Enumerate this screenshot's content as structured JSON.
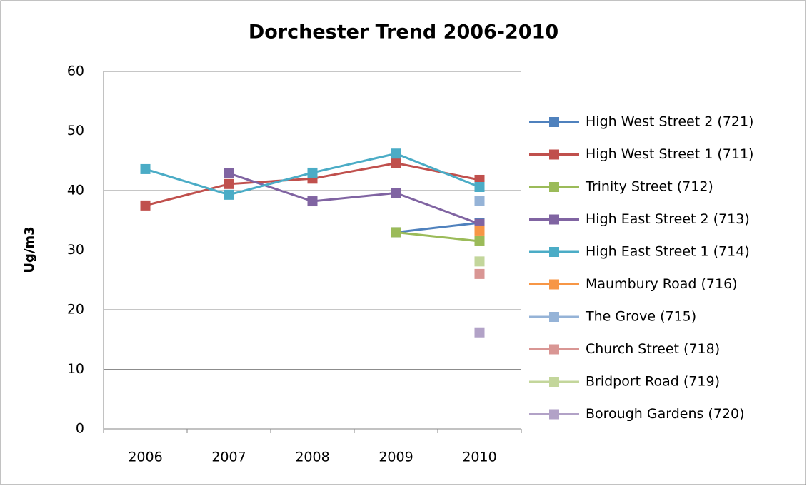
{
  "chart_data": {
    "type": "line",
    "title": "Dorchester Trend 2006-2010",
    "y_label": "Ug/m3",
    "categories": [
      "2006",
      "2007",
      "2008",
      "2009",
      "2010"
    ],
    "ylim": [
      0,
      60
    ],
    "yticks": [
      0,
      10,
      20,
      30,
      40,
      50,
      60
    ],
    "grid": true,
    "legend": "right",
    "series": [
      {
        "name": "High West Street 2 (721)",
        "color": "#4F81BD",
        "values": [
          null,
          null,
          null,
          33,
          34.6
        ]
      },
      {
        "name": "High West Street 1 (711)",
        "color": "#C0504D",
        "values": [
          37.5,
          41.1,
          42,
          44.6,
          41.8
        ]
      },
      {
        "name": "Trinity Street (712)",
        "color": "#9BBB59",
        "values": [
          null,
          null,
          null,
          33,
          31.5
        ]
      },
      {
        "name": "High East Street 2 (713)",
        "color": "#8064A2",
        "values": [
          null,
          42.9,
          38.2,
          39.6,
          34.4
        ]
      },
      {
        "name": "High East Street 1 (714)",
        "color": "#4BACC6",
        "values": [
          43.6,
          39.3,
          43,
          46.2,
          40.6
        ]
      },
      {
        "name": "Maumbury Road (716)",
        "color": "#F79646",
        "values": [
          null,
          null,
          null,
          null,
          33.3
        ]
      },
      {
        "name": "The Grove (715)",
        "color": "#95B3D7",
        "values": [
          null,
          null,
          null,
          null,
          38.3
        ]
      },
      {
        "name": "Church Street (718)",
        "color": "#D99694",
        "values": [
          null,
          null,
          null,
          null,
          26
        ]
      },
      {
        "name": "Bridport Road (719)",
        "color": "#C3D69B",
        "values": [
          null,
          null,
          null,
          null,
          28.1
        ]
      },
      {
        "name": "Borough Gardens (720)",
        "color": "#B2A2C7",
        "values": [
          null,
          null,
          null,
          null,
          16.2
        ]
      }
    ]
  }
}
